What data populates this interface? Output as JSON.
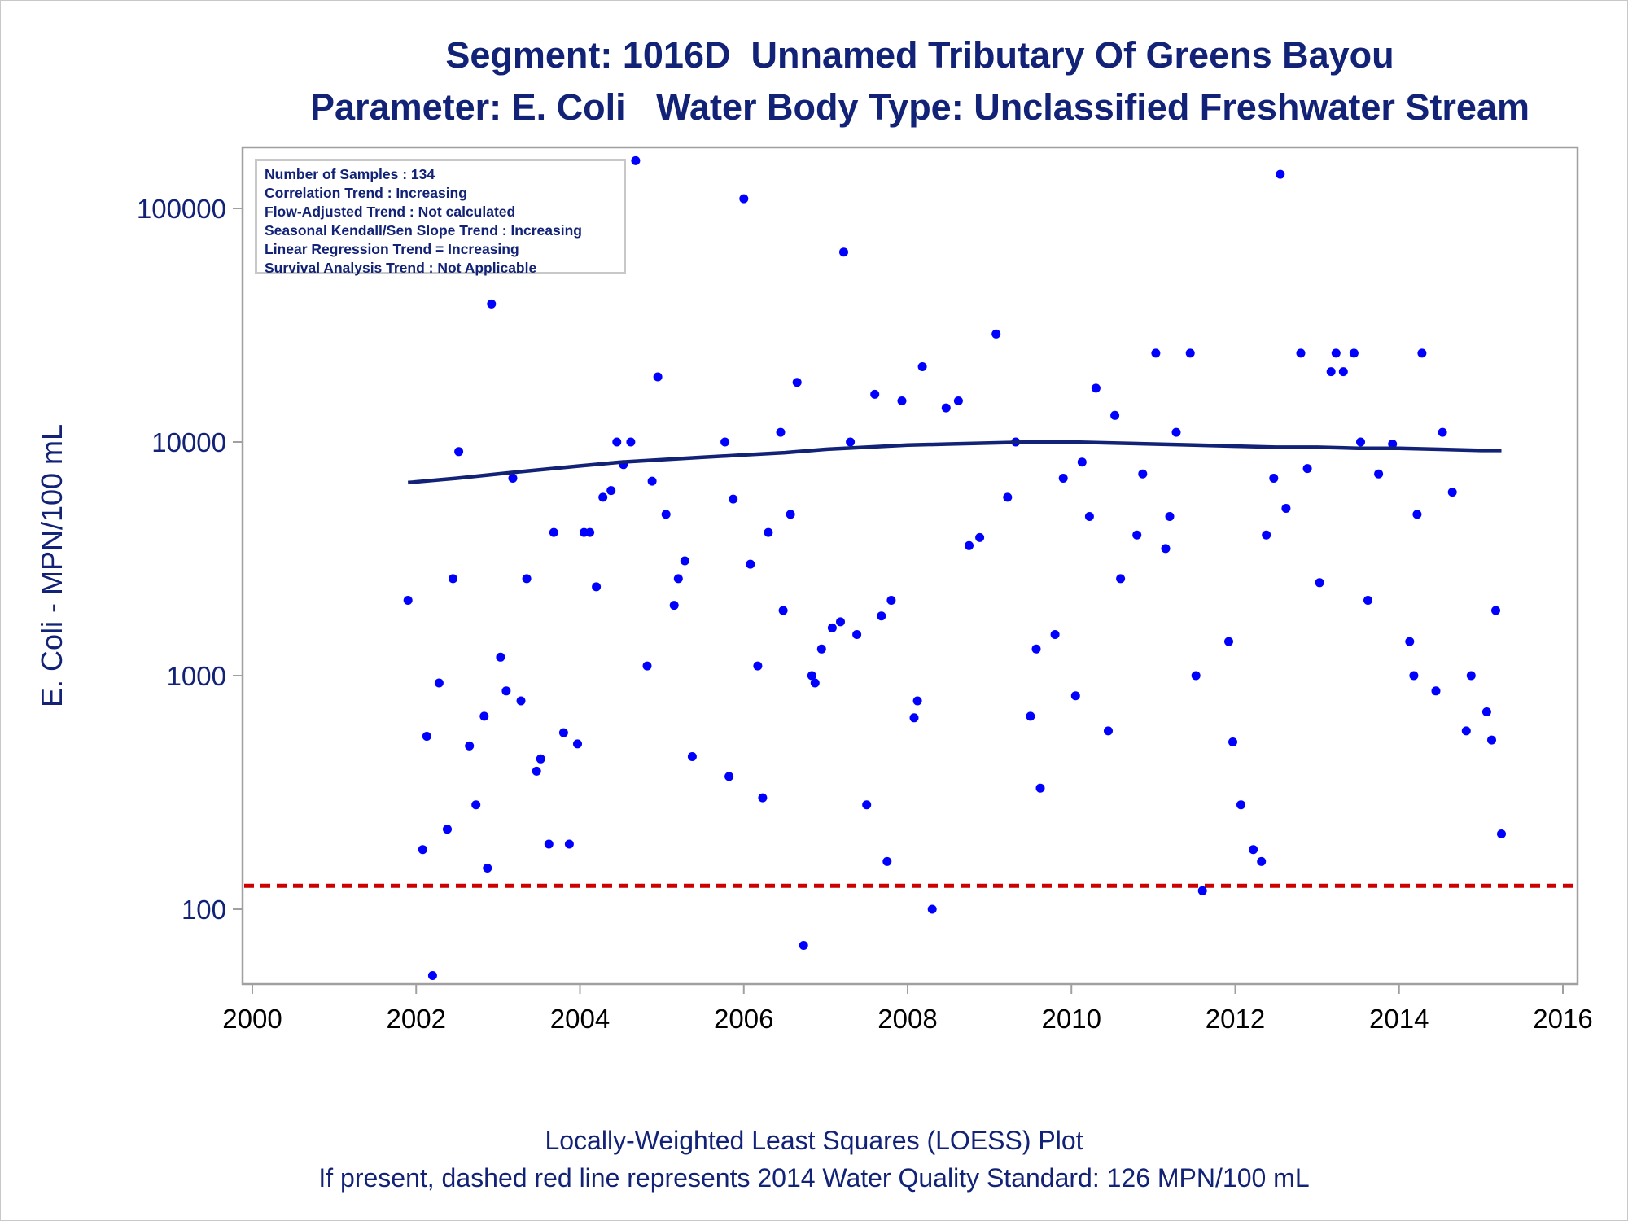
{
  "titles": {
    "line1": "Segment: 1016D  Unnamed Tributary Of Greens Bayou",
    "line2": "Parameter: E. Coli   Water Body Type: Unclassified Freshwater Stream"
  },
  "stats_box": [
    "Number of Samples : 134",
    "Correlation Trend : Increasing",
    "Flow-Adjusted Trend : Not calculated",
    "Seasonal Kendall/Sen Slope Trend : Increasing",
    "Linear Regression Trend = Increasing",
    "Survival Analysis Trend : Not Applicable"
  ],
  "footnotes": {
    "line1": "Locally-Weighted Least Squares (LOESS) Plot",
    "line2": "If present, dashed red line represents 2014 Water Quality Standard: 126 MPN/100 mL"
  },
  "colors": {
    "points": "#0000ff",
    "loess": "#112277",
    "standard": "#cc0000",
    "text": "#112277",
    "axis": "#a0a0a0"
  },
  "chart_data": {
    "type": "scatter",
    "ylabel": "E. Coli - MPN/100 mL",
    "xlabel": "",
    "y_scale": "log",
    "xlim": [
      2000,
      2016
    ],
    "ylim": [
      50,
      170000
    ],
    "x_ticks": [
      "2000",
      "2002",
      "2004",
      "2006",
      "2008",
      "2010",
      "2012",
      "2014",
      "2016"
    ],
    "y_ticks": [
      "100",
      "1000",
      "10000",
      "100000"
    ],
    "grid": false,
    "standard_line": 126,
    "series": [
      {
        "type": "scatter",
        "points": [
          [
            2001.9,
            2100
          ],
          [
            2002.08,
            180
          ],
          [
            2002.13,
            550
          ],
          [
            2002.2,
            52
          ],
          [
            2002.28,
            930
          ],
          [
            2002.38,
            220
          ],
          [
            2002.45,
            2600
          ],
          [
            2002.52,
            9100
          ],
          [
            2002.65,
            500
          ],
          [
            2002.73,
            280
          ],
          [
            2002.83,
            670
          ],
          [
            2002.87,
            150
          ],
          [
            2002.92,
            39000
          ],
          [
            2003.03,
            1200
          ],
          [
            2003.1,
            860
          ],
          [
            2003.18,
            7000
          ],
          [
            2003.28,
            780
          ],
          [
            2003.35,
            2600
          ],
          [
            2003.47,
            390
          ],
          [
            2003.52,
            440
          ],
          [
            2003.62,
            190
          ],
          [
            2003.68,
            4100
          ],
          [
            2003.8,
            570
          ],
          [
            2003.87,
            190
          ],
          [
            2003.97,
            510
          ],
          [
            2004.05,
            4100
          ],
          [
            2004.12,
            4100
          ],
          [
            2004.2,
            2400
          ],
          [
            2004.28,
            5800
          ],
          [
            2004.38,
            6200
          ],
          [
            2004.45,
            10000
          ],
          [
            2004.53,
            8000
          ],
          [
            2004.62,
            10000
          ],
          [
            2004.68,
            160000
          ],
          [
            2004.82,
            1100
          ],
          [
            2004.88,
            6800
          ],
          [
            2004.95,
            19000
          ],
          [
            2005.05,
            4900
          ],
          [
            2005.15,
            2000
          ],
          [
            2005.2,
            2600
          ],
          [
            2005.28,
            3100
          ],
          [
            2005.37,
            450
          ],
          [
            2005.77,
            10000
          ],
          [
            2005.82,
            370
          ],
          [
            2005.87,
            5700
          ],
          [
            2006.0,
            110000
          ],
          [
            2006.08,
            3000
          ],
          [
            2006.17,
            1100
          ],
          [
            2006.23,
            300
          ],
          [
            2006.3,
            4100
          ],
          [
            2006.45,
            11000
          ],
          [
            2006.48,
            1900
          ],
          [
            2006.57,
            4900
          ],
          [
            2006.65,
            18000
          ],
          [
            2006.73,
            70
          ],
          [
            2006.83,
            1000
          ],
          [
            2006.87,
            930
          ],
          [
            2006.95,
            1300
          ],
          [
            2007.08,
            1600
          ],
          [
            2007.18,
            1700
          ],
          [
            2007.22,
            65000
          ],
          [
            2007.3,
            10000
          ],
          [
            2007.38,
            1500
          ],
          [
            2007.5,
            280
          ],
          [
            2007.6,
            16000
          ],
          [
            2007.68,
            1800
          ],
          [
            2007.75,
            160
          ],
          [
            2007.8,
            2100
          ],
          [
            2007.93,
            15000
          ],
          [
            2008.08,
            660
          ],
          [
            2008.12,
            780
          ],
          [
            2008.18,
            21000
          ],
          [
            2008.3,
            100
          ],
          [
            2008.47,
            14000
          ],
          [
            2008.62,
            15000
          ],
          [
            2008.75,
            3600
          ],
          [
            2008.88,
            3900
          ],
          [
            2009.08,
            29000
          ],
          [
            2009.22,
            5800
          ],
          [
            2009.32,
            10000
          ],
          [
            2009.5,
            670
          ],
          [
            2009.57,
            1300
          ],
          [
            2009.62,
            330
          ],
          [
            2009.8,
            1500
          ],
          [
            2009.9,
            7000
          ],
          [
            2010.05,
            820
          ],
          [
            2010.13,
            8200
          ],
          [
            2010.22,
            4800
          ],
          [
            2010.3,
            17000
          ],
          [
            2010.45,
            580
          ],
          [
            2010.53,
            13000
          ],
          [
            2010.6,
            2600
          ],
          [
            2010.8,
            4000
          ],
          [
            2010.87,
            7300
          ],
          [
            2011.03,
            24000
          ],
          [
            2011.15,
            3500
          ],
          [
            2011.2,
            4800
          ],
          [
            2011.28,
            11000
          ],
          [
            2011.45,
            24000
          ],
          [
            2011.52,
            1000
          ],
          [
            2011.6,
            120
          ],
          [
            2011.92,
            1400
          ],
          [
            2011.97,
            520
          ],
          [
            2012.07,
            280
          ],
          [
            2012.22,
            180
          ],
          [
            2012.32,
            160
          ],
          [
            2012.38,
            4000
          ],
          [
            2012.47,
            7000
          ],
          [
            2012.55,
            140000
          ],
          [
            2012.62,
            5200
          ],
          [
            2012.8,
            24000
          ],
          [
            2012.88,
            7700
          ],
          [
            2013.03,
            2500
          ],
          [
            2013.17,
            20000
          ],
          [
            2013.23,
            24000
          ],
          [
            2013.32,
            20000
          ],
          [
            2013.45,
            24000
          ],
          [
            2013.53,
            10000
          ],
          [
            2013.62,
            2100
          ],
          [
            2013.75,
            7300
          ],
          [
            2013.92,
            9800
          ],
          [
            2014.13,
            1400
          ],
          [
            2014.18,
            1000
          ],
          [
            2014.22,
            4900
          ],
          [
            2014.28,
            24000
          ],
          [
            2014.45,
            860
          ],
          [
            2014.53,
            11000
          ],
          [
            2014.65,
            6100
          ],
          [
            2014.82,
            580
          ],
          [
            2014.88,
            1000
          ],
          [
            2015.07,
            700
          ],
          [
            2015.13,
            530
          ],
          [
            2015.18,
            1900
          ],
          [
            2015.25,
            210
          ]
        ]
      },
      {
        "type": "line",
        "points": [
          [
            2001.9,
            6700
          ],
          [
            2002.5,
            7000
          ],
          [
            2003.0,
            7300
          ],
          [
            2003.5,
            7600
          ],
          [
            2004.0,
            7900
          ],
          [
            2004.5,
            8200
          ],
          [
            2005.0,
            8400
          ],
          [
            2005.5,
            8600
          ],
          [
            2006.0,
            8800
          ],
          [
            2006.5,
            9000
          ],
          [
            2007.0,
            9300
          ],
          [
            2007.5,
            9500
          ],
          [
            2008.0,
            9700
          ],
          [
            2008.5,
            9800
          ],
          [
            2009.0,
            9900
          ],
          [
            2009.5,
            10000
          ],
          [
            2010.0,
            10000
          ],
          [
            2010.5,
            9900
          ],
          [
            2011.0,
            9800
          ],
          [
            2011.5,
            9700
          ],
          [
            2012.0,
            9600
          ],
          [
            2012.5,
            9500
          ],
          [
            2013.0,
            9500
          ],
          [
            2013.5,
            9400
          ],
          [
            2014.0,
            9400
          ],
          [
            2014.5,
            9300
          ],
          [
            2015.0,
            9200
          ],
          [
            2015.25,
            9200
          ]
        ]
      }
    ]
  }
}
